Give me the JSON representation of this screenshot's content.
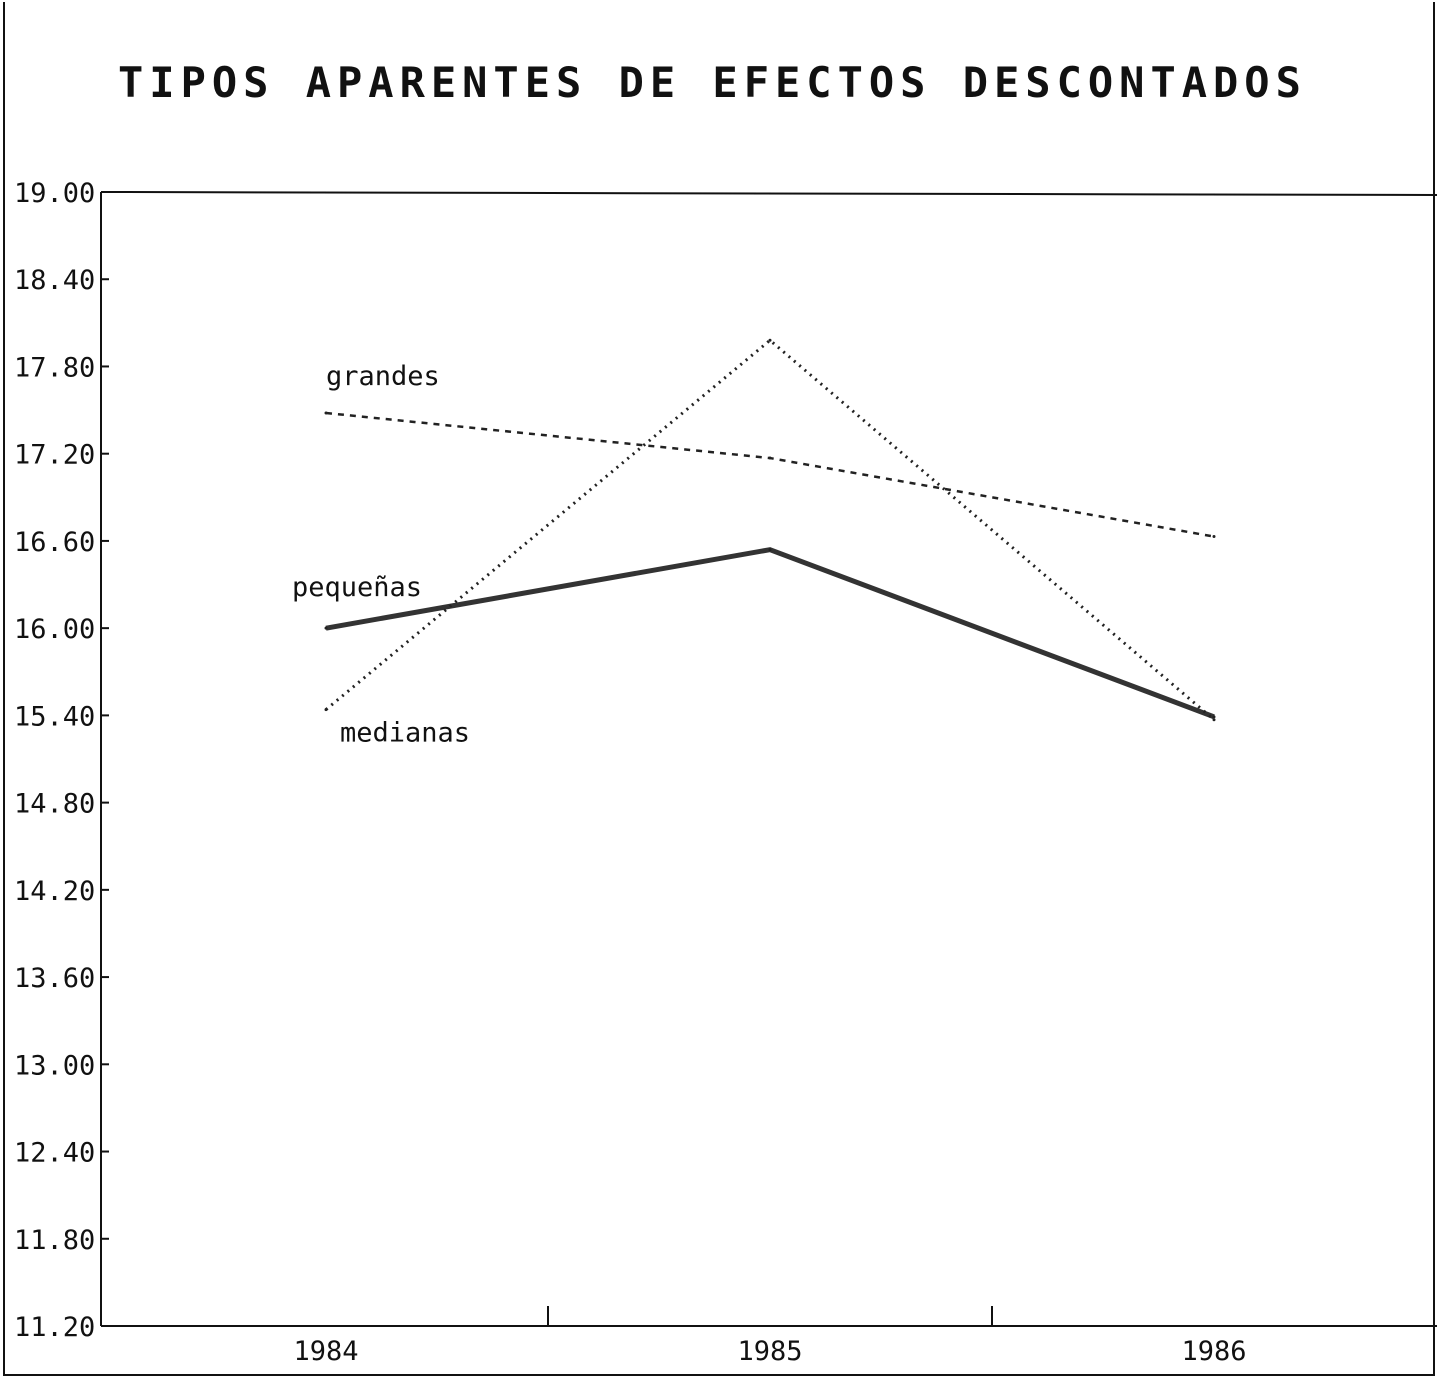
{
  "chart_data": {
    "type": "line",
    "title": "TIPOS APARENTES DE EFECTOS DESCONTADOS",
    "xlabel": "",
    "ylabel": "",
    "categories": [
      "1984",
      "1985",
      "1986"
    ],
    "ylim": [
      11.2,
      19.0
    ],
    "yticks": [
      "19.00",
      "18.40",
      "17.80",
      "17.20",
      "16.60",
      "16.00",
      "15.40",
      "14.80",
      "14.20",
      "13.60",
      "13.00",
      "12.40",
      "11.80",
      "11.20"
    ],
    "grid": false,
    "legend": "inline labels",
    "series": [
      {
        "name": "grandes",
        "values": [
          17.48,
          17.17,
          16.63
        ],
        "style": "dashed"
      },
      {
        "name": "pequeñas",
        "values": [
          16.0,
          16.54,
          15.39
        ],
        "style": "solid"
      },
      {
        "name": "medianas",
        "values": [
          15.44,
          17.98,
          15.37
        ],
        "style": "dotted"
      }
    ]
  }
}
